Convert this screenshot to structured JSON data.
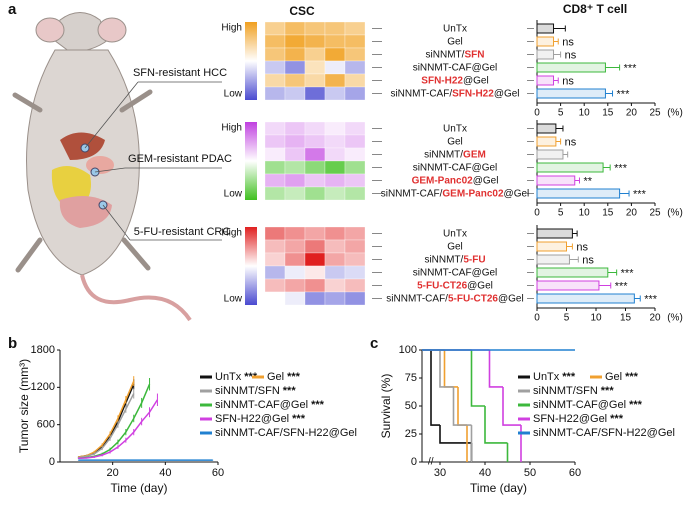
{
  "panel_labels": [
    "a",
    "b",
    "c"
  ],
  "panel_a": {
    "heatmap_title": "CSC",
    "bar_title": "CD8⁺ T cell",
    "highlight_color": "#e03030"
  },
  "chart_data": [
    {
      "type": "heatmap",
      "model": "SFN-resistant HCC",
      "scale_labels": [
        "High",
        "Low"
      ],
      "high_color": "#f0a020",
      "low_color": "#4a4ad0",
      "rows": [
        [
          {
            "text": "UnTx"
          }
        ],
        [
          {
            "text": "Gel"
          }
        ],
        [
          {
            "text": "siNNMT/"
          },
          {
            "text": "SFN",
            "highlight": true
          }
        ],
        [
          {
            "text": "siNNMT-CAF@Gel"
          }
        ],
        [
          {
            "text": "SFN-H22",
            "highlight": true
          },
          {
            "text": "@Gel"
          }
        ],
        [
          {
            "text": "siNNMT-CAF/"
          },
          {
            "text": "SFN-H22",
            "highlight": true
          },
          {
            "text": "@Gel"
          }
        ]
      ],
      "cells": [
        [
          0.5,
          0.7,
          0.6,
          0.6,
          0.5
        ],
        [
          0.7,
          0.9,
          0.8,
          0.7,
          0.7
        ],
        [
          0.6,
          0.8,
          0.5,
          0.9,
          0.6
        ],
        [
          -0.3,
          -0.6,
          0.3,
          -0.1,
          -0.4
        ],
        [
          0.4,
          0.6,
          0.4,
          0.8,
          0.4
        ],
        [
          -0.4,
          -0.3,
          -0.8,
          -0.3,
          -0.5
        ]
      ],
      "bar": {
        "values": [
          3.5,
          3.5,
          3.5,
          14.5,
          3.5,
          14.5
        ],
        "errors": [
          2.5,
          1,
          1.5,
          3,
          1,
          1.5
        ],
        "significance": [
          null,
          "ns",
          "ns",
          "***",
          "ns",
          "***"
        ],
        "xlim": [
          0,
          25
        ],
        "xticks": [
          0,
          5,
          10,
          15,
          20,
          25
        ],
        "unit": "(%)",
        "colors": [
          "#111111",
          "#f0a030",
          "#a0a0a0",
          "#3cb83c",
          "#d040e0",
          "#2080d0"
        ]
      }
    },
    {
      "type": "heatmap",
      "model": "GEM-resistant PDAC",
      "scale_labels": [
        "High",
        "Low"
      ],
      "high_color": "#c040e0",
      "low_color": "#40c020",
      "rows": [
        [
          {
            "text": "UnTx"
          }
        ],
        [
          {
            "text": "Gel"
          }
        ],
        [
          {
            "text": "siNNMT/"
          },
          {
            "text": "GEM",
            "highlight": true
          }
        ],
        [
          {
            "text": "siNNMT-CAF@Gel"
          }
        ],
        [
          {
            "text": "GEM-Panc02",
            "highlight": true
          },
          {
            "text": "@Gel"
          }
        ],
        [
          {
            "text": "siNNMT-CAF/"
          },
          {
            "text": "GEM-Panc02",
            "highlight": true
          },
          {
            "text": "@Gel"
          }
        ]
      ],
      "cells": [
        [
          0.2,
          0.3,
          0.2,
          0.1,
          0.2
        ],
        [
          0.3,
          0.4,
          0.3,
          0.2,
          0.3
        ],
        [
          0.1,
          0.3,
          0.7,
          0.2,
          0.1
        ],
        [
          -0.5,
          -0.4,
          -0.6,
          -0.8,
          -0.5
        ],
        [
          0.4,
          0.5,
          0.3,
          0.4,
          0.3
        ],
        [
          -0.4,
          -0.3,
          -0.5,
          -0.3,
          -0.4
        ]
      ],
      "bar": {
        "values": [
          4,
          4,
          5.5,
          14,
          8,
          17.5
        ],
        "errors": [
          1.5,
          1,
          1,
          1.5,
          1,
          2
        ],
        "significance": [
          null,
          "ns",
          null,
          "***",
          "**",
          "***"
        ],
        "xlim": [
          0,
          25
        ],
        "xticks": [
          0,
          5,
          10,
          15,
          20,
          25
        ],
        "unit": "(%)",
        "colors": [
          "#111111",
          "#f0a030",
          "#a0a0a0",
          "#3cb83c",
          "#d040e0",
          "#2080d0"
        ]
      }
    },
    {
      "type": "heatmap",
      "model": "5-FU-resistant CRC",
      "scale_labels": [
        "High",
        "Low"
      ],
      "high_color": "#e02020",
      "low_color": "#4a4ad0",
      "rows": [
        [
          {
            "text": "UnTx"
          }
        ],
        [
          {
            "text": "Gel"
          }
        ],
        [
          {
            "text": "siNNMT/"
          },
          {
            "text": "5-FU",
            "highlight": true
          }
        ],
        [
          {
            "text": "siNNMT-CAF@Gel"
          }
        ],
        [
          {
            "text": "5-FU-CT26",
            "highlight": true
          },
          {
            "text": "@Gel"
          }
        ],
        [
          {
            "text": "siNNMT-CAF/"
          },
          {
            "text": "5-FU-CT26",
            "highlight": true
          },
          {
            "text": "@Gel"
          }
        ]
      ],
      "cells": [
        [
          0.6,
          0.5,
          0.4,
          0.5,
          0.4
        ],
        [
          0.3,
          0.4,
          0.6,
          0.3,
          0.4
        ],
        [
          0.2,
          0.5,
          1,
          0.4,
          0.3
        ],
        [
          -0.4,
          -0.1,
          0.1,
          -0.3,
          -0.2
        ],
        [
          0.3,
          0.4,
          0.5,
          0.2,
          0.3
        ],
        [
          0,
          -0.1,
          -0.6,
          -0.5,
          -0.6
        ]
      ],
      "bar": {
        "values": [
          6,
          5,
          5.5,
          12,
          10.5,
          16.5
        ],
        "errors": [
          0.8,
          1,
          1.5,
          1.5,
          2,
          1
        ],
        "significance": [
          null,
          "ns",
          "ns",
          "***",
          "***",
          "***"
        ],
        "xlim": [
          0,
          20
        ],
        "xticks": [
          0,
          5,
          10,
          15,
          20
        ],
        "unit": "(%)",
        "colors": [
          "#111111",
          "#f0a030",
          "#a0a0a0",
          "#3cb83c",
          "#d040e0",
          "#2080d0"
        ]
      }
    },
    {
      "type": "line",
      "ylabel": "Tumor size (mm³)",
      "xlabel": "Time (day)",
      "xlim": [
        0,
        60
      ],
      "xticks": [
        20,
        40,
        60
      ],
      "ylim": [
        0,
        1800
      ],
      "yticks": [
        0,
        600,
        1200,
        1800
      ],
      "series": [
        {
          "name": "UnTx",
          "sig": "***",
          "color": "#111111",
          "x": [
            7,
            10,
            13,
            16,
            19,
            22,
            25,
            28
          ],
          "values": [
            80,
            100,
            150,
            250,
            420,
            650,
            950,
            1250
          ],
          "errors": [
            10,
            15,
            20,
            30,
            40,
            50,
            60,
            80
          ]
        },
        {
          "name": "Gel",
          "sig": "***",
          "color": "#f0a030",
          "x": [
            7,
            10,
            13,
            16,
            19,
            22,
            25,
            28
          ],
          "values": [
            80,
            100,
            160,
            270,
            450,
            700,
            1000,
            1300
          ],
          "errors": [
            10,
            15,
            20,
            30,
            40,
            50,
            60,
            80
          ]
        },
        {
          "name": "siNNMT/SFN",
          "sig": "***",
          "color": "#a0a0a0",
          "x": [
            7,
            10,
            13,
            16,
            19,
            22,
            25,
            28
          ],
          "values": [
            70,
            90,
            130,
            220,
            380,
            600,
            850,
            1100
          ],
          "errors": [
            10,
            15,
            20,
            30,
            40,
            50,
            60,
            80
          ]
        },
        {
          "name": "siNNMT-CAF@Gel",
          "sig": "***",
          "color": "#3cb83c",
          "x": [
            7,
            10,
            13,
            16,
            19,
            22,
            25,
            28,
            31,
            34
          ],
          "values": [
            60,
            70,
            90,
            130,
            200,
            320,
            480,
            700,
            950,
            1250
          ],
          "errors": [
            10,
            10,
            15,
            20,
            30,
            40,
            50,
            60,
            80,
            100
          ]
        },
        {
          "name": "SFN-H22@Gel",
          "sig": "***",
          "color": "#d040e0",
          "x": [
            7,
            10,
            13,
            16,
            19,
            22,
            25,
            28,
            31,
            34,
            37
          ],
          "values": [
            60,
            65,
            80,
            110,
            160,
            240,
            350,
            480,
            650,
            800,
            1000
          ],
          "errors": [
            10,
            10,
            15,
            20,
            25,
            30,
            40,
            50,
            60,
            80,
            100
          ]
        },
        {
          "name": "siNNMT-CAF/SFN-H22@Gel",
          "color": "#2080d0",
          "x": [
            7,
            10,
            13,
            16,
            19,
            22,
            25,
            28,
            31,
            34,
            37,
            40,
            43,
            46,
            49,
            52,
            55,
            58
          ],
          "values": [
            30,
            30,
            30,
            30,
            30,
            30,
            30,
            30,
            30,
            30,
            30,
            30,
            30,
            30,
            30,
            30,
            30,
            30
          ],
          "errors": [
            5,
            5,
            5,
            5,
            5,
            5,
            5,
            5,
            5,
            5,
            5,
            5,
            5,
            5,
            5,
            5,
            5,
            5
          ]
        }
      ]
    },
    {
      "type": "step",
      "ylabel": "Survival (%)",
      "xlabel": "Time (day)",
      "xlim": [
        26,
        60
      ],
      "xticks": [
        30,
        40,
        50,
        60
      ],
      "ylim": [
        0,
        100
      ],
      "yticks": [
        0,
        25,
        50,
        75,
        100
      ],
      "series": [
        {
          "name": "UnTx",
          "sig": "***",
          "color": "#111111",
          "x": [
            26,
            28,
            30,
            37
          ],
          "values": [
            100,
            33,
            17,
            0
          ]
        },
        {
          "name": "Gel",
          "sig": "***",
          "color": "#f0a030",
          "x": [
            26,
            31,
            34,
            36
          ],
          "values": [
            100,
            67,
            33,
            0
          ]
        },
        {
          "name": "siNNMT/SFN",
          "sig": "***",
          "color": "#a0a0a0",
          "x": [
            26,
            30,
            33,
            37
          ],
          "values": [
            100,
            67,
            33,
            0
          ]
        },
        {
          "name": "siNNMT-CAF@Gel",
          "sig": "***",
          "color": "#3cb83c",
          "x": [
            26,
            37,
            40,
            45
          ],
          "values": [
            100,
            50,
            17,
            0
          ]
        },
        {
          "name": "SFN-H22@Gel",
          "sig": "***",
          "color": "#d040e0",
          "x": [
            26,
            41,
            44,
            48
          ],
          "values": [
            100,
            67,
            33,
            0
          ]
        },
        {
          "name": "siNNMT-CAF/SFN-H22@Gel",
          "color": "#2080d0",
          "x": [
            26
          ],
          "values": [
            100
          ]
        }
      ]
    }
  ]
}
